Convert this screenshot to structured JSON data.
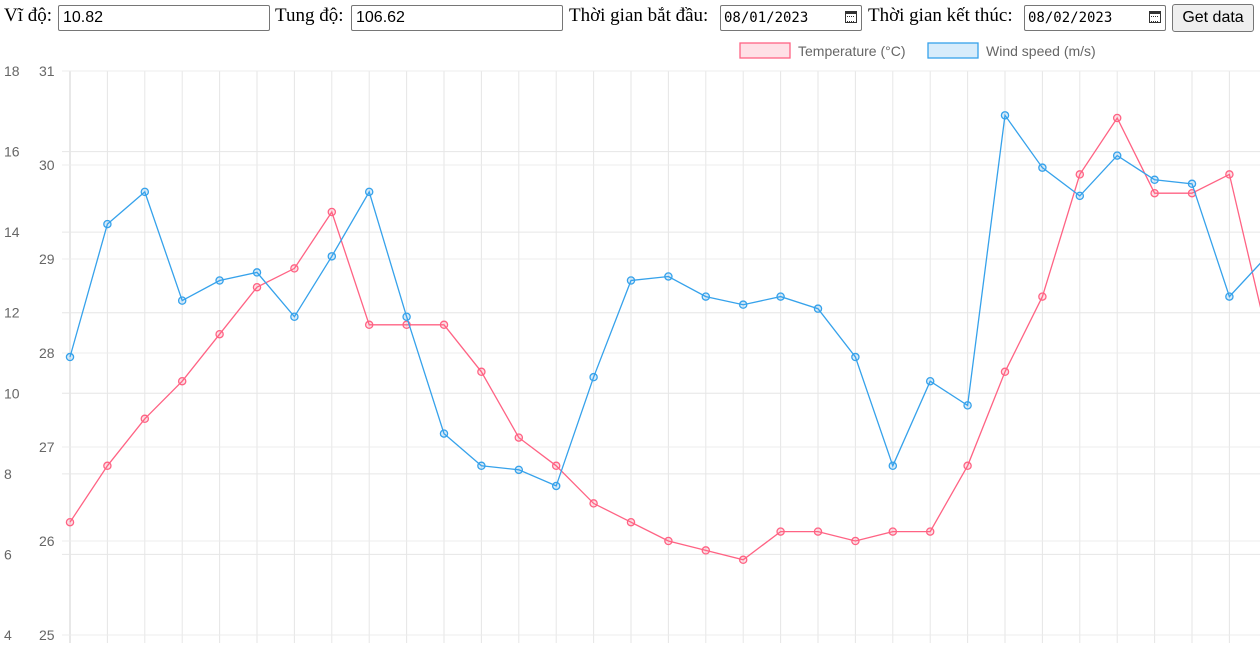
{
  "form": {
    "lat_label": "Vĩ độ:",
    "lat_value": "10.82",
    "lon_label": "Tung độ:",
    "lon_value": "106.62",
    "start_label": "Thời gian bắt đầu:",
    "start_value": "08/01/2023",
    "end_label": "Thời gian kết thúc:",
    "end_value": "08/02/2023",
    "button_label": "Get data"
  },
  "chart_data": {
    "type": "line",
    "title": "",
    "grid": true,
    "legend_position": "top-right",
    "x_points": 33,
    "x_tick_labels_visible": false,
    "axes": {
      "y_left": {
        "ylim": [
          4,
          18
        ],
        "ticks": [
          4,
          6,
          8,
          10,
          12,
          14,
          16,
          18
        ]
      },
      "y_right": {
        "ylim": [
          25,
          31
        ],
        "ticks": [
          25,
          26,
          27,
          28,
          29,
          30,
          31
        ]
      }
    },
    "series": [
      {
        "name": "Temperature (°C)",
        "axis": "y_right",
        "color": "#ff6384",
        "fill": "rgba(255,99,132,0.2)",
        "values": [
          26.2,
          26.8,
          27.3,
          27.7,
          28.2,
          28.7,
          28.9,
          29.5,
          28.3,
          28.3,
          28.3,
          27.8,
          27.1,
          26.8,
          26.4,
          26.2,
          26.0,
          25.9,
          25.8,
          26.1,
          26.1,
          26.0,
          26.1,
          26.1,
          26.8,
          27.8,
          28.6,
          29.9,
          30.5,
          29.7,
          29.7,
          29.9,
          28.2
        ]
      },
      {
        "name": "Wind speed (m/s)",
        "axis": "y_left",
        "color": "#36a2eb",
        "fill": "rgba(54,162,235,0.2)",
        "values": [
          10.9,
          14.2,
          15.0,
          12.3,
          12.8,
          13.0,
          11.9,
          13.4,
          15.0,
          11.9,
          9.0,
          8.2,
          8.1,
          7.7,
          10.4,
          12.8,
          12.9,
          12.4,
          12.2,
          12.4,
          12.1,
          10.9,
          8.2,
          10.3,
          9.7,
          16.9,
          15.6,
          14.9,
          15.9,
          15.3,
          15.2,
          12.4,
          13.4
        ]
      }
    ]
  }
}
